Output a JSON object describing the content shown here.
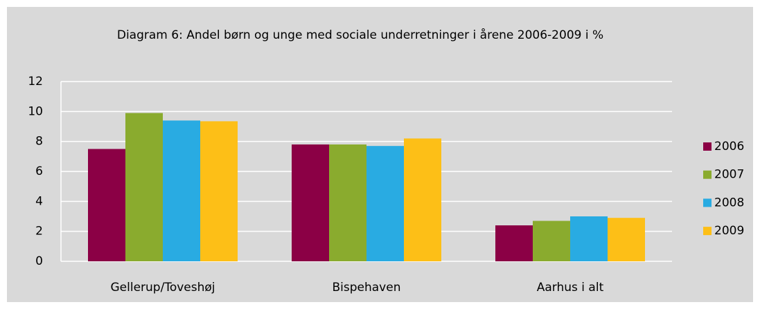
{
  "chart_data": {
    "type": "bar",
    "title": "Diagram 6: Andel børn og unge med sociale underretninger i årene 2006-2009 i %",
    "categories": [
      "Gellerup/Toveshøj",
      "Bispehaven",
      "Aarhus i alt"
    ],
    "series": [
      {
        "name": "2006",
        "color": "#8b0045",
        "values": [
          7.5,
          7.8,
          2.4
        ]
      },
      {
        "name": "2007",
        "color": "#8aab2e",
        "values": [
          9.9,
          7.8,
          2.7
        ]
      },
      {
        "name": "2008",
        "color": "#29abe2",
        "values": [
          9.4,
          7.7,
          3.0
        ]
      },
      {
        "name": "2009",
        "color": "#fdbf17",
        "values": [
          9.35,
          8.2,
          2.9
        ]
      }
    ],
    "ylim": [
      0,
      12
    ],
    "yticks": [
      0,
      2,
      4,
      6,
      8,
      10,
      12
    ],
    "grid": true,
    "legend": "right"
  }
}
